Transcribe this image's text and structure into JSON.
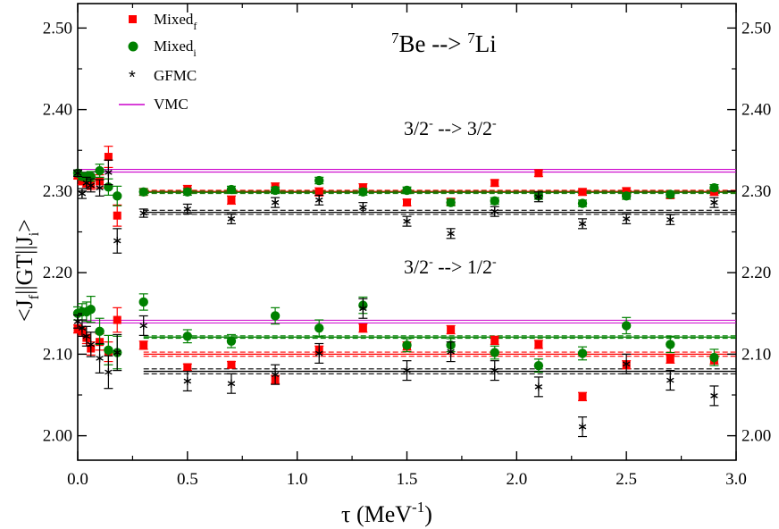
{
  "chart_data": {
    "type": "scatter",
    "title": "7Be --> 7Li",
    "title_parts": {
      "sup1": "7",
      "base1": "Be --> ",
      "sup2": "7",
      "base2": "Li"
    },
    "xlabel": "τ  (MeV-1)",
    "xlabel_parts": {
      "base": "τ  (MeV",
      "sup": "-1",
      "end": ")"
    },
    "ylabel": "<Jf||GT||Ji>",
    "ylabel_parts": {
      "a": "<J",
      "sub1": "f",
      "b": "||GT||J",
      "sub2": "i",
      "c": ">"
    },
    "xlim": [
      0.0,
      3.0
    ],
    "ylim": [
      1.97,
      2.53
    ],
    "x_ticks": [
      "0.0",
      "0.5",
      "1.0",
      "1.5",
      "2.0",
      "2.5",
      "3.0"
    ],
    "y_ticks": [
      "2.00",
      "2.10",
      "2.20",
      "2.30",
      "2.40",
      "2.50"
    ],
    "y_ticks_right": [
      "2.00",
      "2.10",
      "2.20",
      "2.30",
      "2.40",
      "2.50"
    ],
    "grid": false,
    "legend_position": "top-left",
    "annotations": [
      {
        "text_base": "3/2",
        "text_sup": "-",
        "text_mid": " --> 3/2",
        "text_sup2": "-"
      },
      {
        "text_base": "3/2",
        "text_sup": "-",
        "text_mid": " --> 1/2",
        "text_sup2": "-"
      }
    ],
    "legend": [
      {
        "label": "Mixed",
        "sub": "f",
        "color": "#ff0000",
        "marker": "square"
      },
      {
        "label": "Mixed",
        "sub": "i",
        "color": "#008000",
        "marker": "circle"
      },
      {
        "label": "GFMC",
        "sub": "",
        "color": "#000000",
        "marker": "asterisk"
      },
      {
        "label": "VMC",
        "sub": "",
        "color": "#cc00cc",
        "marker": "line"
      }
    ],
    "bands": [
      {
        "series": "VMC",
        "transition": "3/2- --> 3/2-",
        "value": 2.325,
        "color": "#cc00cc",
        "x_start": 0.0
      },
      {
        "series": "Mixed_f",
        "transition": "3/2- --> 3/2-",
        "value": 2.2995,
        "spread": 0.0015,
        "color": "#ff0000",
        "x_start": 0.3
      },
      {
        "series": "Mixed_i",
        "transition": "3/2- --> 3/2-",
        "value": 2.2985,
        "spread": 0.0015,
        "color": "#008000",
        "x_start": 0.3
      },
      {
        "series": "GFMC",
        "transition": "3/2- --> 3/2-",
        "value": 2.274,
        "spread": 0.0025,
        "color": "#000000",
        "x_start": 0.3
      },
      {
        "series": "VMC",
        "transition": "3/2- --> 1/2-",
        "value": 2.14,
        "color": "#cc00cc",
        "x_start": 0.0
      },
      {
        "series": "Mixed_i",
        "transition": "3/2- --> 1/2-",
        "value": 2.121,
        "spread": 0.0015,
        "color": "#008000",
        "x_start": 0.3
      },
      {
        "series": "Mixed_f",
        "transition": "3/2- --> 1/2-",
        "value": 2.1,
        "spread": 0.0025,
        "color": "#ff0000",
        "x_start": 0.3
      },
      {
        "series": "GFMC",
        "transition": "3/2- --> 1/2-",
        "value": 2.079,
        "spread": 0.003,
        "color": "#000000",
        "x_start": 0.3
      }
    ],
    "series": [
      {
        "name": "Mixed_f",
        "color": "#ff0000",
        "marker": "square",
        "points": [
          [
            0.0,
            2.319,
            0.004
          ],
          [
            0.02,
            2.312,
            0.004
          ],
          [
            0.04,
            2.31,
            0.005
          ],
          [
            0.06,
            2.308,
            0.006
          ],
          [
            0.1,
            2.312,
            0.008
          ],
          [
            0.14,
            2.342,
            0.013
          ],
          [
            0.18,
            2.27,
            0.013
          ],
          [
            0.3,
            2.299,
            0.004
          ],
          [
            0.5,
            2.302,
            0.005
          ],
          [
            0.7,
            2.289,
            0.005
          ],
          [
            0.9,
            2.305,
            0.005
          ],
          [
            1.1,
            2.299,
            0.005
          ],
          [
            1.3,
            2.304,
            0.005
          ],
          [
            1.5,
            2.286,
            0.004
          ],
          [
            1.7,
            2.287,
            0.004
          ],
          [
            1.9,
            2.31,
            0.004
          ],
          [
            2.1,
            2.322,
            0.004
          ],
          [
            2.3,
            2.299,
            0.004
          ],
          [
            2.5,
            2.3,
            0.004
          ],
          [
            2.7,
            2.295,
            0.004
          ],
          [
            2.9,
            2.299,
            0.004
          ],
          [
            0.0,
            2.131,
            0.005
          ],
          [
            0.02,
            2.128,
            0.006
          ],
          [
            0.04,
            2.12,
            0.007
          ],
          [
            0.06,
            2.107,
            0.008
          ],
          [
            0.1,
            2.115,
            0.01
          ],
          [
            0.14,
            2.103,
            0.012
          ],
          [
            0.18,
            2.142,
            0.015
          ],
          [
            0.3,
            2.111,
            0.005
          ],
          [
            0.5,
            2.084,
            0.004
          ],
          [
            0.7,
            2.087,
            0.004
          ],
          [
            0.9,
            2.069,
            0.005
          ],
          [
            1.1,
            2.105,
            0.005
          ],
          [
            1.3,
            2.132,
            0.005
          ],
          [
            1.5,
            2.11,
            0.005
          ],
          [
            1.7,
            2.13,
            0.005
          ],
          [
            1.9,
            2.117,
            0.005
          ],
          [
            2.1,
            2.112,
            0.005
          ],
          [
            2.3,
            2.048,
            0.005
          ],
          [
            2.5,
            2.087,
            0.005
          ],
          [
            2.7,
            2.094,
            0.005
          ],
          [
            2.9,
            2.093,
            0.005
          ]
        ]
      },
      {
        "name": "Mixed_i",
        "color": "#008000",
        "marker": "circle",
        "points": [
          [
            0.0,
            2.322,
            0.003
          ],
          [
            0.02,
            2.318,
            0.004
          ],
          [
            0.04,
            2.318,
            0.005
          ],
          [
            0.06,
            2.318,
            0.006
          ],
          [
            0.1,
            2.325,
            0.008
          ],
          [
            0.14,
            2.305,
            0.01
          ],
          [
            0.18,
            2.294,
            0.012
          ],
          [
            0.3,
            2.299,
            0.004
          ],
          [
            0.5,
            2.299,
            0.004
          ],
          [
            0.7,
            2.302,
            0.004
          ],
          [
            0.9,
            2.301,
            0.004
          ],
          [
            1.1,
            2.313,
            0.004
          ],
          [
            1.3,
            2.299,
            0.004
          ],
          [
            1.5,
            2.301,
            0.004
          ],
          [
            1.7,
            2.286,
            0.004
          ],
          [
            1.9,
            2.288,
            0.004
          ],
          [
            2.1,
            2.294,
            0.004
          ],
          [
            2.3,
            2.285,
            0.004
          ],
          [
            2.5,
            2.294,
            0.004
          ],
          [
            2.7,
            2.296,
            0.004
          ],
          [
            2.9,
            2.304,
            0.004
          ]
        ]
      },
      {
        "name": "Mixed_i",
        "color": "#008000",
        "marker": "circle",
        "points": [
          [
            0.0,
            2.15,
            0.008
          ],
          [
            0.02,
            2.152,
            0.01
          ],
          [
            0.04,
            2.152,
            0.012
          ],
          [
            0.06,
            2.155,
            0.016
          ],
          [
            0.1,
            2.128,
            0.016
          ],
          [
            0.14,
            2.105,
            0.018
          ],
          [
            0.18,
            2.102,
            0.02
          ],
          [
            0.3,
            2.164,
            0.01
          ],
          [
            0.5,
            2.122,
            0.008
          ],
          [
            0.7,
            2.116,
            0.008
          ],
          [
            0.9,
            2.147,
            0.01
          ],
          [
            1.1,
            2.132,
            0.01
          ],
          [
            1.3,
            2.16,
            0.01
          ],
          [
            1.5,
            2.111,
            0.008
          ],
          [
            1.7,
            2.111,
            0.008
          ],
          [
            1.9,
            2.102,
            0.008
          ],
          [
            2.1,
            2.086,
            0.008
          ],
          [
            2.3,
            2.101,
            0.008
          ],
          [
            2.5,
            2.135,
            0.01
          ],
          [
            2.7,
            2.112,
            0.01
          ],
          [
            2.9,
            2.096,
            0.01
          ]
        ]
      },
      {
        "name": "GFMC",
        "color": "#000000",
        "marker": "asterisk",
        "points": [
          [
            0.0,
            2.322,
            0.004
          ],
          [
            0.02,
            2.297,
            0.006
          ],
          [
            0.04,
            2.31,
            0.007
          ],
          [
            0.06,
            2.307,
            0.008
          ],
          [
            0.1,
            2.304,
            0.01
          ],
          [
            0.14,
            2.323,
            0.015
          ],
          [
            0.18,
            2.239,
            0.015
          ],
          [
            0.3,
            2.273,
            0.005
          ],
          [
            0.5,
            2.278,
            0.006
          ],
          [
            0.7,
            2.266,
            0.006
          ],
          [
            0.9,
            2.286,
            0.006
          ],
          [
            1.1,
            2.289,
            0.006
          ],
          [
            1.3,
            2.28,
            0.006
          ],
          [
            1.5,
            2.263,
            0.006
          ],
          [
            1.7,
            2.248,
            0.006
          ],
          [
            1.9,
            2.275,
            0.006
          ],
          [
            2.1,
            2.293,
            0.006
          ],
          [
            2.3,
            2.26,
            0.006
          ],
          [
            2.5,
            2.266,
            0.006
          ],
          [
            2.7,
            2.265,
            0.006
          ],
          [
            2.9,
            2.286,
            0.006
          ],
          [
            0.0,
            2.14,
            0.008
          ],
          [
            0.02,
            2.132,
            0.01
          ],
          [
            0.04,
            2.122,
            0.012
          ],
          [
            0.06,
            2.112,
            0.015
          ],
          [
            0.1,
            2.095,
            0.018
          ],
          [
            0.14,
            2.078,
            0.02
          ],
          [
            0.18,
            2.102,
            0.022
          ],
          [
            0.3,
            2.135,
            0.012
          ],
          [
            0.5,
            2.067,
            0.012
          ],
          [
            0.7,
            2.064,
            0.012
          ],
          [
            0.9,
            2.075,
            0.012
          ],
          [
            1.1,
            2.101,
            0.012
          ],
          [
            1.3,
            2.156,
            0.012
          ],
          [
            1.5,
            2.08,
            0.012
          ],
          [
            1.7,
            2.103,
            0.012
          ],
          [
            1.9,
            2.08,
            0.012
          ],
          [
            2.1,
            2.06,
            0.012
          ],
          [
            2.3,
            2.011,
            0.012
          ],
          [
            2.5,
            2.088,
            0.012
          ],
          [
            2.7,
            2.068,
            0.012
          ],
          [
            2.9,
            2.049,
            0.012
          ]
        ]
      }
    ]
  }
}
